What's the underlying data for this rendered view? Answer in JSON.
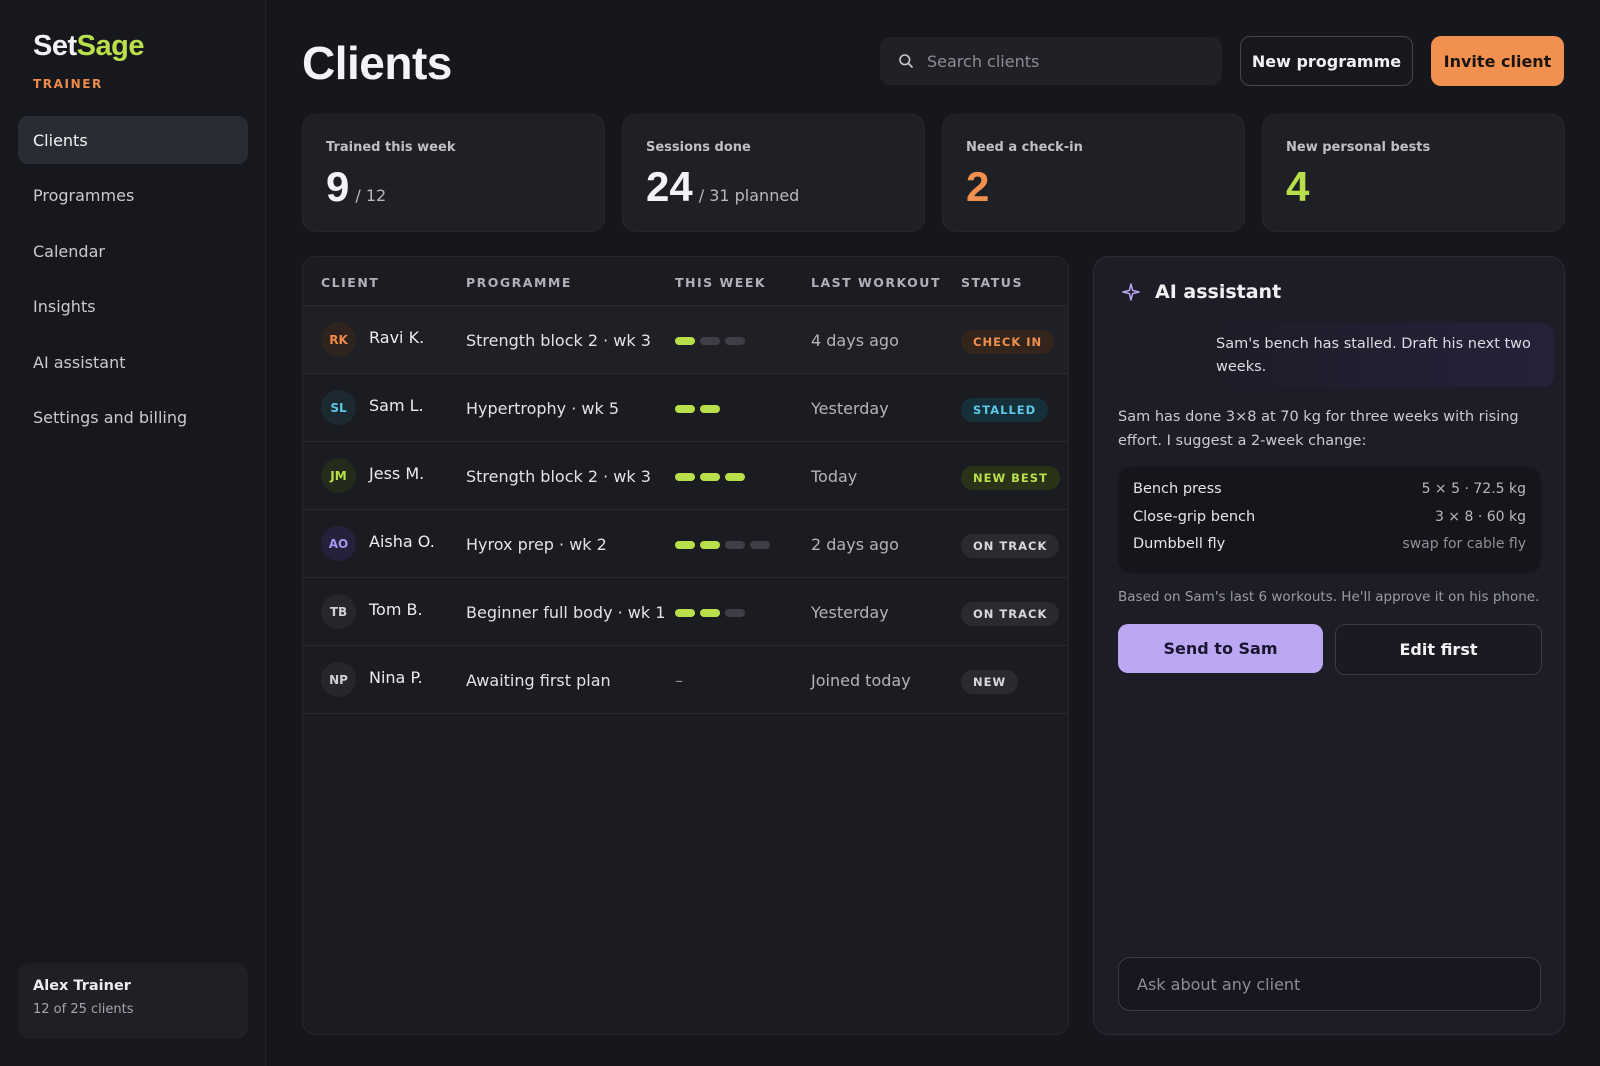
{
  "brand": {
    "name_a": "Set",
    "name_b": "Sage",
    "role": "TRAINER"
  },
  "nav": {
    "items": [
      {
        "label": "Clients",
        "active": true
      },
      {
        "label": "Programmes",
        "active": false
      },
      {
        "label": "Calendar",
        "active": false
      },
      {
        "label": "Insights",
        "active": false
      },
      {
        "label": "AI assistant",
        "active": false
      },
      {
        "label": "Settings and billing",
        "active": false
      }
    ]
  },
  "user": {
    "name": "Alex Trainer",
    "meta": "12 of 25 clients"
  },
  "header": {
    "title": "Clients",
    "search_placeholder": "Search clients",
    "new_programme": "New programme",
    "invite_client": "Invite client"
  },
  "stats": [
    {
      "label": "Trained this week",
      "value": "9",
      "sub": "/ 12"
    },
    {
      "label": "Sessions done",
      "value": "24",
      "sub": "/ 31 planned"
    },
    {
      "label": "Need a check-in",
      "value": "2",
      "sub": ""
    },
    {
      "label": "New personal bests",
      "value": "4",
      "sub": ""
    }
  ],
  "table": {
    "headers": [
      "CLIENT",
      "PROGRAMME",
      "THIS WEEK",
      "LAST WORKOUT",
      "STATUS"
    ],
    "rows": [
      {
        "initials": "RK",
        "name": "Ravi K.",
        "programme": "Strength block 2 · wk 3",
        "week_done": 1,
        "week_total": 3,
        "last": "4 days ago",
        "status": "CHECK IN",
        "tone": "orange"
      },
      {
        "initials": "SL",
        "name": "Sam L.",
        "programme": "Hypertrophy · wk 5",
        "week_done": 2,
        "week_total": 2,
        "last": "Yesterday",
        "status": "STALLED",
        "tone": "blue"
      },
      {
        "initials": "JM",
        "name": "Jess M.",
        "programme": "Strength block 2 · wk 3",
        "week_done": 3,
        "week_total": 3,
        "last": "Today",
        "status": "NEW BEST",
        "tone": "green"
      },
      {
        "initials": "AO",
        "name": "Aisha O.",
        "programme": "Hyrox prep · wk 2",
        "week_done": 2,
        "week_total": 4,
        "last": "2 days ago",
        "status": "ON TRACK",
        "tone": "purple"
      },
      {
        "initials": "TB",
        "name": "Tom B.",
        "programme": "Beginner full body · wk 1",
        "week_done": 2,
        "week_total": 3,
        "last": "Yesterday",
        "status": "ON TRACK",
        "tone": "gray"
      },
      {
        "initials": "NP",
        "name": "Nina P.",
        "programme": "Awaiting first plan",
        "week_done": 0,
        "week_total": 0,
        "week_text": "–",
        "last": "Joined today",
        "status": "NEW",
        "tone": "gray"
      }
    ]
  },
  "ai": {
    "title": "AI assistant",
    "user_prompt": "Sam's bench has stalled. Draft his next two weeks.",
    "reply": "Sam has done 3×8 at 70 kg for three weeks with rising effort. I suggest a 2-week change:",
    "plan": [
      {
        "exercise": "Bench press",
        "value": "5 × 5 · 72.5 kg"
      },
      {
        "exercise": "Close-grip bench",
        "value": "3 × 8 · 60 kg"
      },
      {
        "exercise": "Dumbbell fly",
        "value": "swap for cable fly"
      }
    ],
    "note": "Based on Sam's last 6 workouts. He'll approve it on his phone.",
    "send_label": "Send to Sam",
    "edit_label": "Edit first",
    "ask_placeholder": "Ask about any client"
  },
  "colors": {
    "accent_green": "#b8e04a",
    "accent_orange": "#f2914f",
    "accent_purple": "#bba7f2",
    "background": "#16171c"
  },
  "icons": [
    "search-icon",
    "sparkle-icon"
  ]
}
